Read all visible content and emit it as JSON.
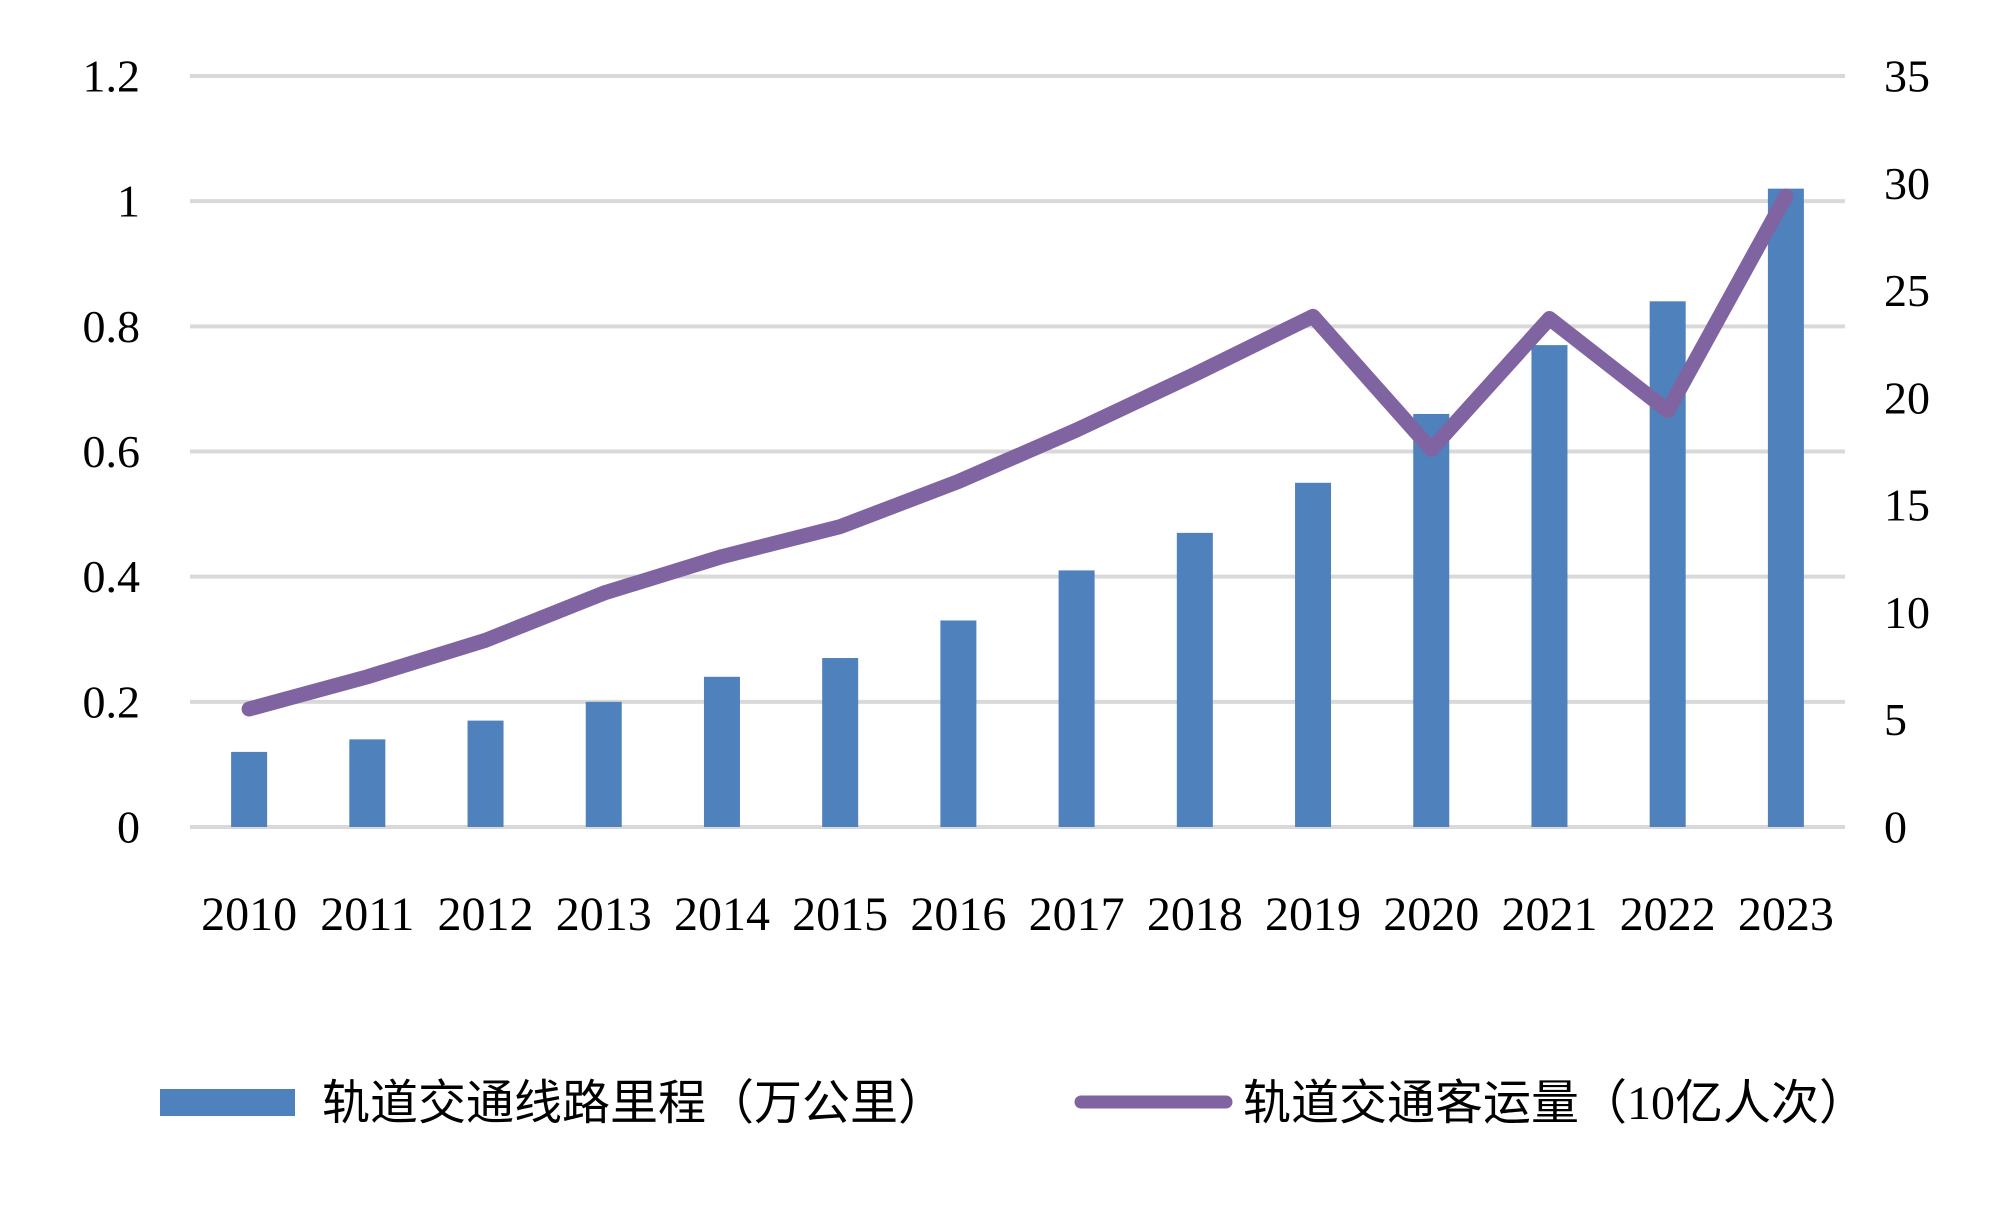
{
  "page": {
    "background": "#ffffff"
  },
  "chart_data": {
    "type": "combo",
    "categories": [
      "2010",
      "2011",
      "2012",
      "2013",
      "2014",
      "2015",
      "2016",
      "2017",
      "2018",
      "2019",
      "2020",
      "2021",
      "2022",
      "2023"
    ],
    "series": [
      {
        "name": "轨道交通线路里程（万公里）",
        "type": "bar",
        "axis": "left",
        "color": "#4F81BD",
        "values": [
          0.12,
          0.14,
          0.17,
          0.2,
          0.24,
          0.27,
          0.33,
          0.41,
          0.47,
          0.55,
          0.66,
          0.77,
          0.84,
          1.02
        ]
      },
      {
        "name": "轨道交通客运量（10亿人次）",
        "type": "line",
        "axis": "right",
        "color": "#8064A2",
        "values": [
          5.5,
          7.0,
          8.7,
          10.9,
          12.6,
          14.0,
          16.1,
          18.5,
          21.1,
          23.8,
          17.6,
          23.7,
          19.4,
          29.4
        ]
      }
    ],
    "left_axis": {
      "min": 0,
      "max": 1.2,
      "step": 0.2,
      "tick_labels": [
        "1.2",
        "1",
        "0.8",
        "0.6",
        "0.4",
        "0.2",
        "0"
      ]
    },
    "right_axis": {
      "min": 0,
      "max": 35,
      "step": 5,
      "tick_labels": [
        "35",
        "30",
        "25",
        "20",
        "15",
        "10",
        "5",
        "0"
      ]
    },
    "x_axis": {
      "tick_labels": [
        "2010",
        "2011",
        "2012",
        "2013",
        "2014",
        "2015",
        "2016",
        "2017",
        "2018",
        "2019",
        "2020",
        "2021",
        "2022",
        "2023"
      ]
    },
    "grid": {
      "show": true,
      "color": "#D9D9D9"
    },
    "legend": {
      "position": "bottom",
      "items": [
        {
          "label": "轨道交通线路里程（万公里）",
          "swatch": "bar"
        },
        {
          "label": "轨道交通客运量（10亿人次）",
          "swatch": "line"
        }
      ]
    }
  }
}
